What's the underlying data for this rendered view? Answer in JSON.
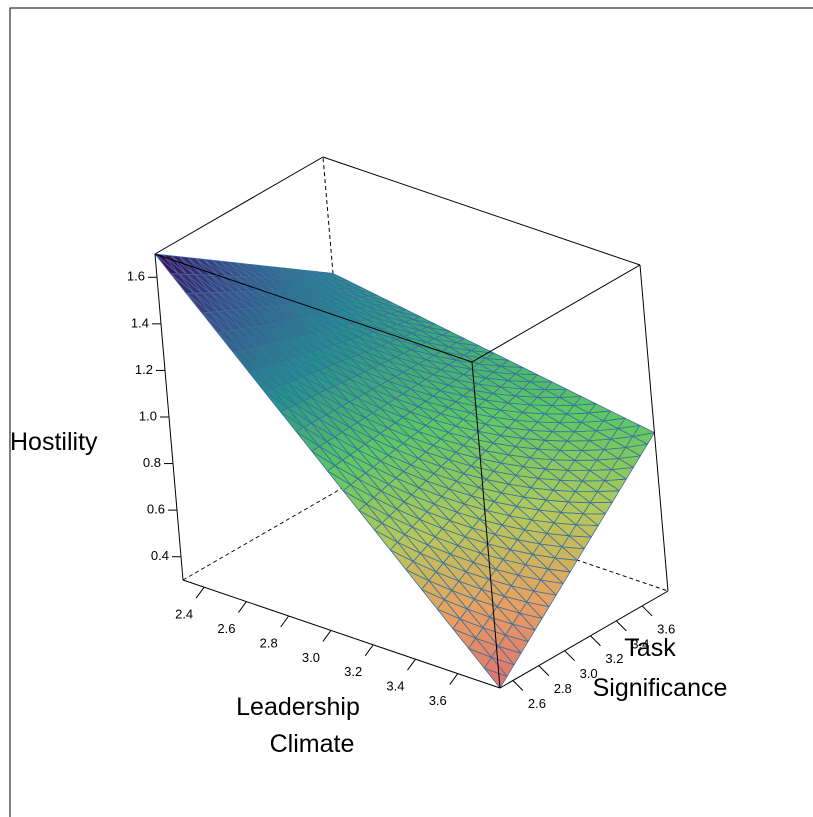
{
  "chart_data": {
    "type": "surface3d",
    "title": "",
    "xlabel": [
      "Leadership",
      "Climate"
    ],
    "ylabel": [
      "Task",
      "Significance"
    ],
    "zlabel": "Hostility",
    "x_ticks": [
      "2.4",
      "2.6",
      "2.8",
      "3.0",
      "3.2",
      "3.4",
      "3.6"
    ],
    "y_ticks": [
      "2.6",
      "2.8",
      "3.0",
      "3.2",
      "3.4",
      "3.6"
    ],
    "z_ticks": [
      "0.4",
      "0.6",
      "0.8",
      "1.0",
      "1.2",
      "1.4",
      "1.6"
    ],
    "xlim": [
      2.3,
      3.8
    ],
    "ylim": [
      2.5,
      3.8
    ],
    "zlim": [
      0.3,
      1.7
    ],
    "x_range": [
      2.3,
      3.8
    ],
    "y_range": [
      2.5,
      3.8
    ],
    "surface_corners": [
      {
        "x": 2.3,
        "y": 2.5,
        "z": 1.7
      },
      {
        "x": 3.8,
        "y": 2.5,
        "z": 0.3
      },
      {
        "x": 3.8,
        "y": 3.8,
        "z": 0.98
      },
      {
        "x": 2.3,
        "y": 3.8,
        "z": 1.2
      }
    ],
    "colormap": [
      "#440154",
      "#3b528b",
      "#21908d",
      "#5dc863",
      "#b5c85a",
      "#e8a060",
      "#e07070"
    ]
  }
}
